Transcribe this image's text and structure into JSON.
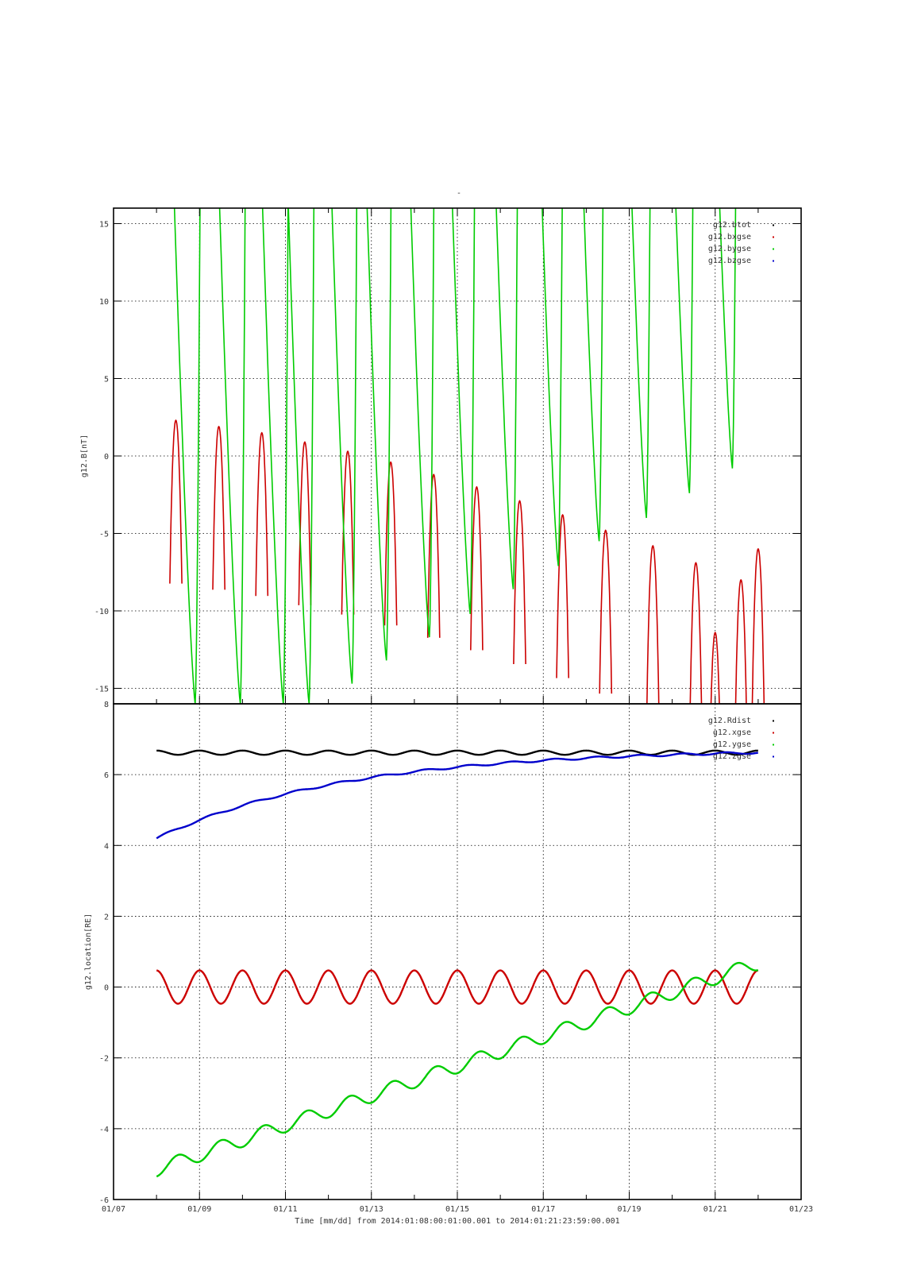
{
  "chart_data": [
    {
      "type": "line",
      "title": "-",
      "ylabel": "g12.B[nT]",
      "ylim": [
        -16,
        16
      ],
      "yticks": [
        -15,
        -10,
        -5,
        0,
        5,
        10,
        15
      ],
      "grid": true,
      "legend_placement": "top-right",
      "x_range": [
        "01/07",
        "01/23"
      ],
      "series": [
        {
          "name": "g12.btot",
          "color": "#000000",
          "shown_in_range": false
        },
        {
          "name": "g12.bxgse",
          "color": "#cc0000",
          "note_peaks": "local maxima near each day",
          "x": [
            "01/08.45",
            "01/09.45",
            "01/10.45",
            "01/11.45",
            "01/12.45",
            "01/13.45",
            "01/14.45",
            "01/15.45",
            "01/16.45",
            "01/17.45",
            "01/18.45",
            "01/19.55",
            "01/20.55",
            "01/21.0",
            "01/21.6",
            "01/22.0"
          ],
          "values": [
            2.3,
            1.9,
            1.5,
            0.9,
            0.3,
            -0.4,
            -1.2,
            -2.0,
            -2.9,
            -3.8,
            -4.8,
            -5.8,
            -6.9,
            -11.4,
            -8.0,
            -6.0
          ]
        },
        {
          "name": "g12.bygse",
          "color": "#00cc00",
          "x": [
            "01/08.9",
            "01/09.95",
            "01/10.95",
            "01/11.55",
            "01/12.55",
            "01/13.35",
            "01/14.35",
            "01/15.3",
            "01/16.3",
            "01/17.35",
            "01/18.3",
            "01/19.4",
            "01/20.4",
            "01/21.4"
          ],
          "values": [
            -16,
            -16,
            -16,
            -16,
            -14.7,
            -13.2,
            -11.7,
            -10.2,
            -8.6,
            -7.1,
            -5.5,
            -4.0,
            -2.4,
            -0.8
          ]
        },
        {
          "name": "g12.bzgse",
          "color": "#0000cc",
          "shown_in_range": false
        }
      ]
    },
    {
      "type": "line",
      "ylabel": "g12.location[RE]",
      "ylim": [
        -6,
        8
      ],
      "yticks": [
        -6,
        -4,
        -2,
        0,
        2,
        4,
        6,
        8
      ],
      "grid": true,
      "legend_placement": "top-right",
      "x_range": [
        "01/07",
        "01/23"
      ],
      "x_ticks": [
        "01/07",
        "01/09",
        "01/11",
        "01/13",
        "01/15",
        "01/17",
        "01/19",
        "01/21",
        "01/23"
      ],
      "xlabel": "Time [mm/dd]  from 2014:01:08:00:01:00.001  to  2014:01:21:23:59:00.001",
      "series": [
        {
          "name": "g12.Rdist",
          "color": "#000000",
          "mean": 6.62,
          "amplitude": 0.06,
          "period_days": 1
        },
        {
          "name": "g12.xgse",
          "color": "#cc0000",
          "mean": 0.0,
          "amplitude": 0.47,
          "period_days": 1
        },
        {
          "name": "g12.ygse",
          "color": "#00cc00",
          "start": -5.15,
          "end": 0.68,
          "daily_wiggle": 0.2
        },
        {
          "name": "g12.zgse",
          "color": "#0000cc",
          "start": 4.2,
          "end": 6.62,
          "shape": "saturating rise"
        }
      ]
    }
  ]
}
